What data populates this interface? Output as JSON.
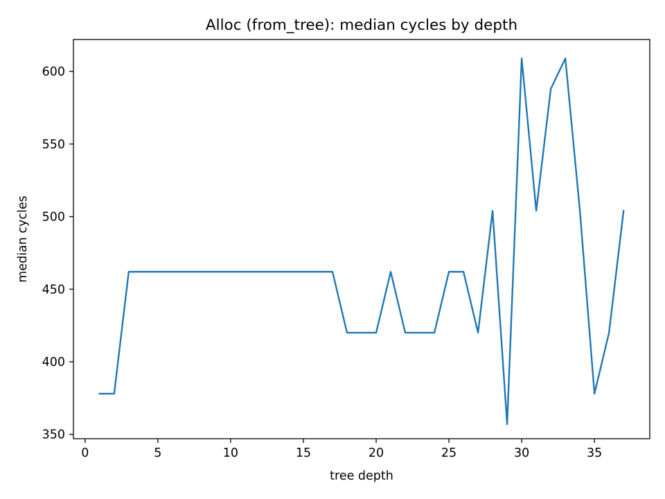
{
  "chart_data": {
    "type": "line",
    "title": "Alloc (from_tree): median cycles by depth",
    "xlabel": "tree depth",
    "ylabel": "median cycles",
    "xlim": [
      -0.8,
      38.8
    ],
    "ylim": [
      347,
      622
    ],
    "xticks": [
      0,
      5,
      10,
      15,
      20,
      25,
      30,
      35
    ],
    "yticks": [
      350,
      400,
      450,
      500,
      550,
      600
    ],
    "grid": false,
    "legend": "none",
    "series": [
      {
        "color": "#1f77b4",
        "x": [
          1,
          2,
          3,
          4,
          5,
          6,
          7,
          8,
          9,
          10,
          11,
          12,
          13,
          14,
          15,
          16,
          17,
          18,
          19,
          20,
          21,
          22,
          23,
          24,
          25,
          26,
          27,
          28,
          29,
          30,
          31,
          32,
          33,
          34,
          35,
          36,
          37
        ],
        "y": [
          378,
          378,
          462,
          462,
          462,
          462,
          462,
          462,
          462,
          462,
          462,
          462,
          462,
          462,
          462,
          462,
          462,
          420,
          420,
          420,
          462,
          420,
          420,
          420,
          462,
          462,
          420,
          504,
          357,
          609,
          504,
          588,
          609,
          504,
          378,
          420,
          504
        ]
      }
    ]
  }
}
